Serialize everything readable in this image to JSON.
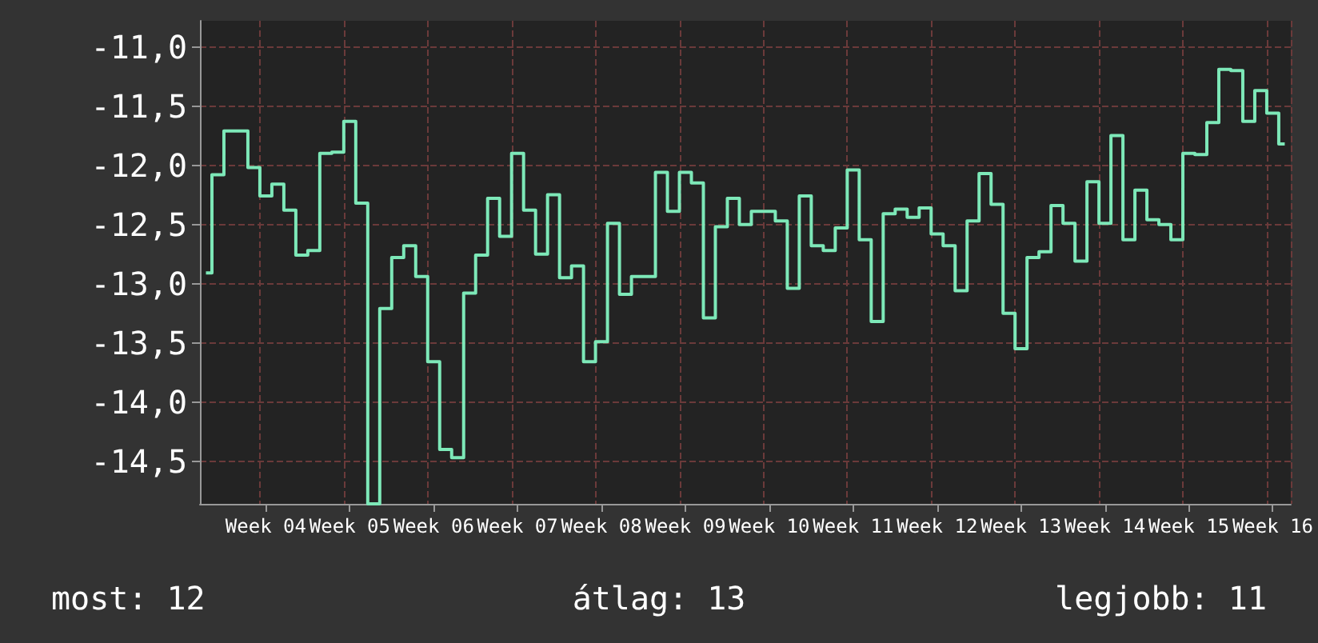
{
  "chart_data": {
    "type": "step",
    "color": "#7de8b8",
    "marker": "none",
    "line_style": "solid",
    "grid": true,
    "categories": [
      null,
      null,
      null,
      null,
      null,
      "Week 04",
      null,
      null,
      null,
      null,
      null,
      null,
      "Week 05",
      null,
      null,
      null,
      null,
      null,
      null,
      "Week 06",
      null,
      null,
      null,
      null,
      null,
      null,
      "Week 07",
      null,
      null,
      null,
      null,
      null,
      null,
      "Week 08",
      null,
      null,
      null,
      null,
      null,
      null,
      "Week 09",
      null,
      null,
      null,
      null,
      null,
      null,
      "Week 10",
      null,
      null,
      null,
      null,
      null,
      null,
      "Week 11",
      null,
      null,
      null,
      null,
      null,
      null,
      "Week 12",
      null,
      null,
      null,
      null,
      null,
      null,
      "Week 13",
      null,
      null,
      null,
      null,
      null,
      null,
      "Week 14",
      null,
      null,
      null,
      null,
      null,
      null,
      "Week 15",
      null,
      null,
      null,
      null,
      null,
      null,
      "Week 16",
      null
    ],
    "ylim": [
      -14.86,
      -10.78
    ],
    "yticks": [
      {
        "value": -11,
        "label": "-11,0"
      },
      {
        "value": -11.5,
        "label": "-11,5"
      },
      {
        "value": -12,
        "label": "-12,0"
      },
      {
        "value": -12.5,
        "label": "-12,5"
      },
      {
        "value": -13,
        "label": "-13,0"
      },
      {
        "value": -13.5,
        "label": "-13,5"
      },
      {
        "value": -14,
        "label": "-14,0"
      },
      {
        "value": -14.5,
        "label": "-14,5"
      }
    ],
    "values": [
      -12.91,
      -12.08,
      -11.71,
      -11.71,
      -12.02,
      -12.26,
      -12.16,
      -12.38,
      -12.76,
      -12.72,
      -11.9,
      -11.89,
      -11.63,
      -12.32,
      -14.86,
      -13.21,
      -12.78,
      -12.68,
      -12.94,
      -13.66,
      -14.4,
      -14.47,
      -13.08,
      -12.76,
      -12.28,
      -12.6,
      -11.9,
      -12.38,
      -12.75,
      -12.25,
      -12.95,
      -12.85,
      -13.66,
      -13.49,
      -12.49,
      -13.09,
      -12.94,
      -12.94,
      -12.06,
      -12.39,
      -12.06,
      -12.15,
      -13.29,
      -12.52,
      -12.28,
      -12.5,
      -12.39,
      -12.39,
      -12.47,
      -13.04,
      -12.26,
      -12.68,
      -12.72,
      -12.53,
      -12.04,
      -12.63,
      -13.32,
      -12.41,
      -12.37,
      -12.44,
      -12.36,
      -12.58,
      -12.68,
      -13.06,
      -12.47,
      -12.07,
      -12.33,
      -13.25,
      -13.55,
      -12.78,
      -12.73,
      -12.34,
      -12.49,
      -12.81,
      -12.14,
      -12.49,
      -11.75,
      -12.63,
      -12.21,
      -12.46,
      -12.5,
      -12.63,
      -11.9,
      -11.91,
      -11.64,
      -11.19,
      -11.2,
      -11.63,
      -11.37,
      -11.56,
      -11.82
    ],
    "annotations": [
      "most: 12",
      "átlag: 13",
      "legjobb: 11"
    ]
  }
}
